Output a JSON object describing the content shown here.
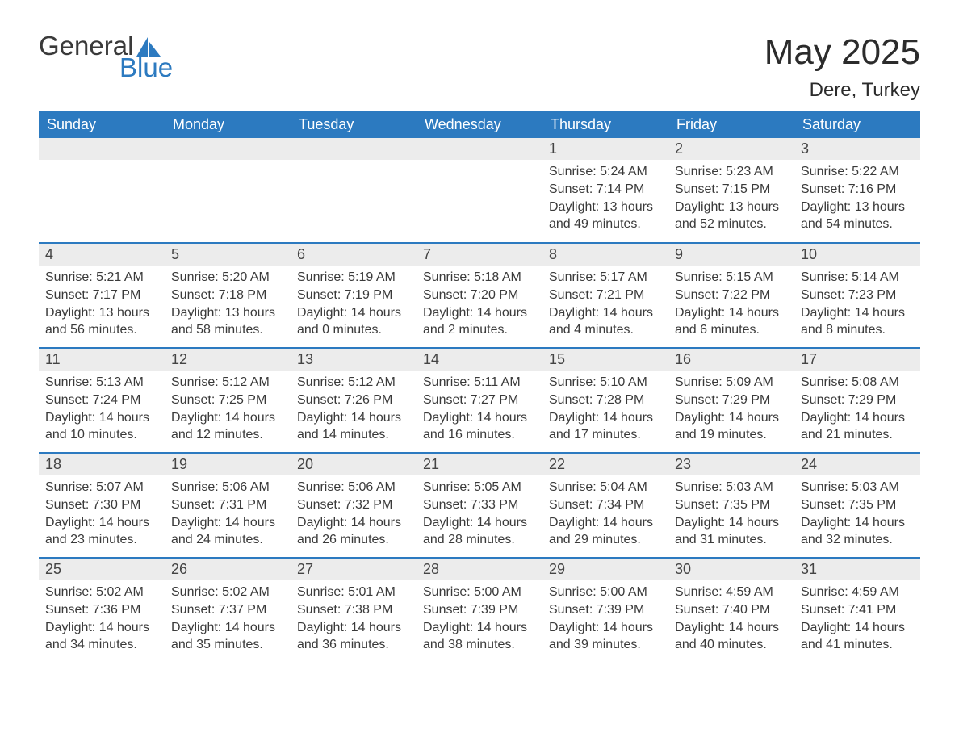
{
  "logo": {
    "word1": "General",
    "word2": "Blue",
    "sail_color": "#2c7ac0"
  },
  "header": {
    "title": "May 2025",
    "location": "Dere, Turkey"
  },
  "colors": {
    "header_bg": "#2c7ac0",
    "header_text": "#ffffff",
    "daybar_bg": "#ececec",
    "text": "#3a3a3a"
  },
  "weekdays": [
    "Sunday",
    "Monday",
    "Tuesday",
    "Wednesday",
    "Thursday",
    "Friday",
    "Saturday"
  ],
  "weeks": [
    [
      null,
      null,
      null,
      null,
      {
        "d": "1",
        "sr": "5:24 AM",
        "ss": "7:14 PM",
        "dl": "13 hours and 49 minutes."
      },
      {
        "d": "2",
        "sr": "5:23 AM",
        "ss": "7:15 PM",
        "dl": "13 hours and 52 minutes."
      },
      {
        "d": "3",
        "sr": "5:22 AM",
        "ss": "7:16 PM",
        "dl": "13 hours and 54 minutes."
      }
    ],
    [
      {
        "d": "4",
        "sr": "5:21 AM",
        "ss": "7:17 PM",
        "dl": "13 hours and 56 minutes."
      },
      {
        "d": "5",
        "sr": "5:20 AM",
        "ss": "7:18 PM",
        "dl": "13 hours and 58 minutes."
      },
      {
        "d": "6",
        "sr": "5:19 AM",
        "ss": "7:19 PM",
        "dl": "14 hours and 0 minutes."
      },
      {
        "d": "7",
        "sr": "5:18 AM",
        "ss": "7:20 PM",
        "dl": "14 hours and 2 minutes."
      },
      {
        "d": "8",
        "sr": "5:17 AM",
        "ss": "7:21 PM",
        "dl": "14 hours and 4 minutes."
      },
      {
        "d": "9",
        "sr": "5:15 AM",
        "ss": "7:22 PM",
        "dl": "14 hours and 6 minutes."
      },
      {
        "d": "10",
        "sr": "5:14 AM",
        "ss": "7:23 PM",
        "dl": "14 hours and 8 minutes."
      }
    ],
    [
      {
        "d": "11",
        "sr": "5:13 AM",
        "ss": "7:24 PM",
        "dl": "14 hours and 10 minutes."
      },
      {
        "d": "12",
        "sr": "5:12 AM",
        "ss": "7:25 PM",
        "dl": "14 hours and 12 minutes."
      },
      {
        "d": "13",
        "sr": "5:12 AM",
        "ss": "7:26 PM",
        "dl": "14 hours and 14 minutes."
      },
      {
        "d": "14",
        "sr": "5:11 AM",
        "ss": "7:27 PM",
        "dl": "14 hours and 16 minutes."
      },
      {
        "d": "15",
        "sr": "5:10 AM",
        "ss": "7:28 PM",
        "dl": "14 hours and 17 minutes."
      },
      {
        "d": "16",
        "sr": "5:09 AM",
        "ss": "7:29 PM",
        "dl": "14 hours and 19 minutes."
      },
      {
        "d": "17",
        "sr": "5:08 AM",
        "ss": "7:29 PM",
        "dl": "14 hours and 21 minutes."
      }
    ],
    [
      {
        "d": "18",
        "sr": "5:07 AM",
        "ss": "7:30 PM",
        "dl": "14 hours and 23 minutes."
      },
      {
        "d": "19",
        "sr": "5:06 AM",
        "ss": "7:31 PM",
        "dl": "14 hours and 24 minutes."
      },
      {
        "d": "20",
        "sr": "5:06 AM",
        "ss": "7:32 PM",
        "dl": "14 hours and 26 minutes."
      },
      {
        "d": "21",
        "sr": "5:05 AM",
        "ss": "7:33 PM",
        "dl": "14 hours and 28 minutes."
      },
      {
        "d": "22",
        "sr": "5:04 AM",
        "ss": "7:34 PM",
        "dl": "14 hours and 29 minutes."
      },
      {
        "d": "23",
        "sr": "5:03 AM",
        "ss": "7:35 PM",
        "dl": "14 hours and 31 minutes."
      },
      {
        "d": "24",
        "sr": "5:03 AM",
        "ss": "7:35 PM",
        "dl": "14 hours and 32 minutes."
      }
    ],
    [
      {
        "d": "25",
        "sr": "5:02 AM",
        "ss": "7:36 PM",
        "dl": "14 hours and 34 minutes."
      },
      {
        "d": "26",
        "sr": "5:02 AM",
        "ss": "7:37 PM",
        "dl": "14 hours and 35 minutes."
      },
      {
        "d": "27",
        "sr": "5:01 AM",
        "ss": "7:38 PM",
        "dl": "14 hours and 36 minutes."
      },
      {
        "d": "28",
        "sr": "5:00 AM",
        "ss": "7:39 PM",
        "dl": "14 hours and 38 minutes."
      },
      {
        "d": "29",
        "sr": "5:00 AM",
        "ss": "7:39 PM",
        "dl": "14 hours and 39 minutes."
      },
      {
        "d": "30",
        "sr": "4:59 AM",
        "ss": "7:40 PM",
        "dl": "14 hours and 40 minutes."
      },
      {
        "d": "31",
        "sr": "4:59 AM",
        "ss": "7:41 PM",
        "dl": "14 hours and 41 minutes."
      }
    ]
  ],
  "labels": {
    "sunrise": "Sunrise:",
    "sunset": "Sunset:",
    "daylight": "Daylight:"
  }
}
